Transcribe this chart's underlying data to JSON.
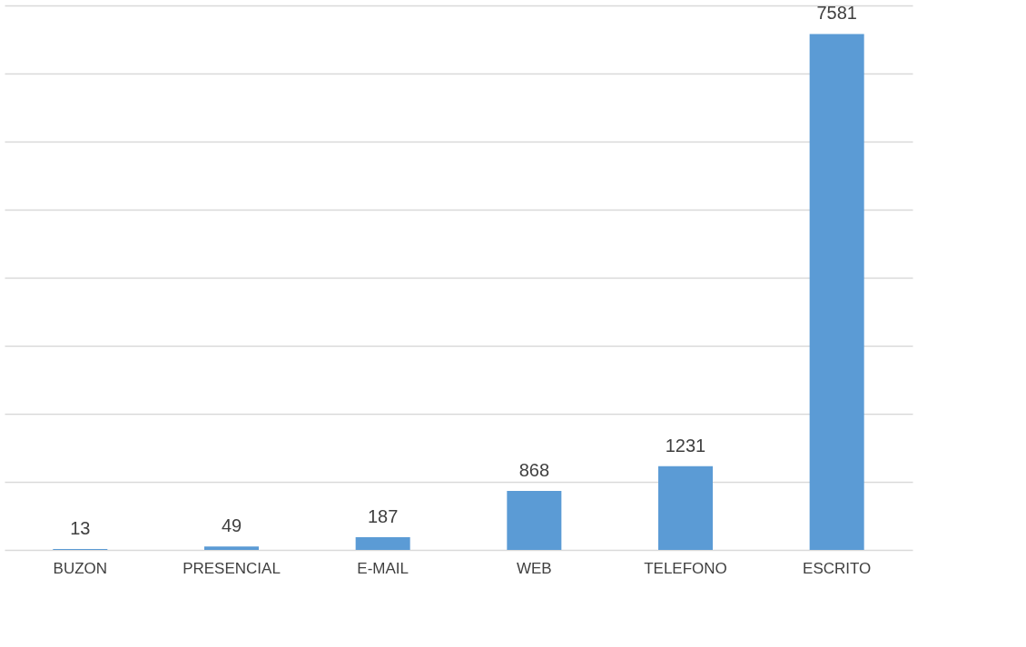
{
  "chart_data": {
    "type": "bar",
    "categories": [
      "BUZON",
      "PRESENCIAL",
      "E-MAIL",
      "WEB",
      "TELEFONO",
      "ESCRITO"
    ],
    "values": [
      13,
      49,
      187,
      868,
      1231,
      7581
    ],
    "color": "#5b9bd5",
    "data_labels": true,
    "grid": "y",
    "tick_labels": "x",
    "ylim": [
      0,
      8000
    ],
    "yticks": [
      {
        "value": 0,
        "label": null
      },
      {
        "value": 1000,
        "label": null
      },
      {
        "value": 2000,
        "label": null
      },
      {
        "value": 3000,
        "label": null
      },
      {
        "value": 4000,
        "label": null
      },
      {
        "value": 5000,
        "label": null
      },
      {
        "value": 6000,
        "label": null
      },
      {
        "value": 7000,
        "label": null
      },
      {
        "value": 8000,
        "label": null
      }
    ]
  }
}
